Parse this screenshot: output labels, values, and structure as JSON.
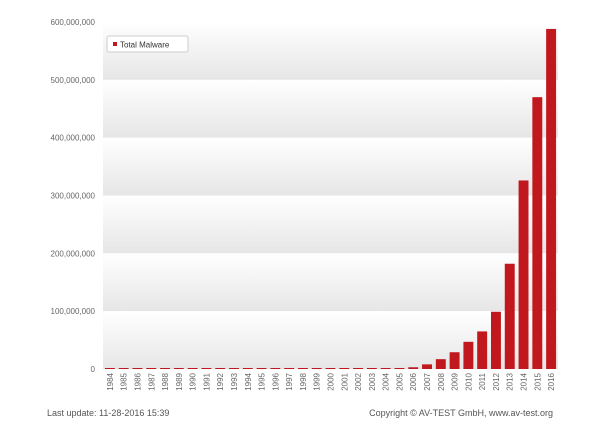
{
  "chart_data": {
    "type": "bar",
    "categories": [
      "1984",
      "1985",
      "1986",
      "1987",
      "1988",
      "1989",
      "1990",
      "1991",
      "1992",
      "1993",
      "1994",
      "1995",
      "1996",
      "1997",
      "1998",
      "1999",
      "2000",
      "2001",
      "2002",
      "2003",
      "2004",
      "2005",
      "2006",
      "2007",
      "2008",
      "2009",
      "2010",
      "2011",
      "2012",
      "2013",
      "2014",
      "2015",
      "2016"
    ],
    "series": [
      {
        "name": "Total Malware",
        "values": [
          0,
          0,
          0,
          0,
          0,
          0,
          0,
          0,
          0,
          0,
          0,
          0,
          0,
          0,
          0,
          0,
          0,
          0,
          0,
          0,
          0,
          600000,
          3000000,
          8000000,
          17000000,
          29000000,
          47000000,
          65000000,
          99000000,
          182000000,
          326000000,
          470000000,
          588000000
        ]
      }
    ],
    "y_ticks": [
      "0",
      "100,000,000",
      "200,000,000",
      "300,000,000",
      "400,000,000",
      "500,000,000",
      "600,000,000"
    ],
    "ylim": [
      0,
      600000000
    ],
    "grid": "horizontal bands",
    "legend_position": "top-left",
    "bar_color": "#c1181e"
  },
  "footer": {
    "last_update": "Last update: 11-28-2016 15:39",
    "copyright": "Copyright © AV-TEST GmbH, www.av-test.org"
  }
}
